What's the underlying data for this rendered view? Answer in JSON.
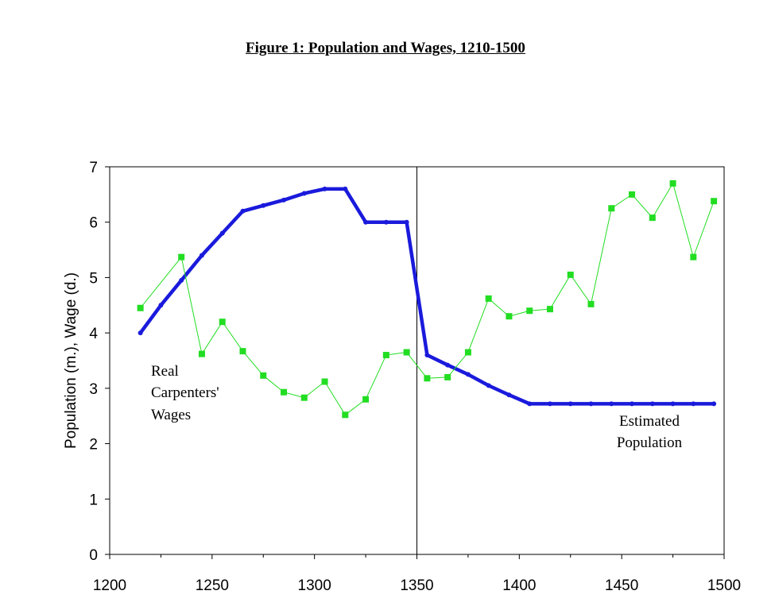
{
  "figure_title": "Figure 1: Population and Wages, 1210-1500",
  "chart_data": {
    "type": "line",
    "title": "Figure 1: Population and Wages, 1210-1500",
    "xlabel": "",
    "ylabel": "Population (m.), Wage (d.)",
    "xlim": [
      1200,
      1500
    ],
    "ylim": [
      0,
      7
    ],
    "x_ticks": [
      1200,
      1250,
      1300,
      1350,
      1400,
      1450,
      1500
    ],
    "y_ticks": [
      0,
      1,
      2,
      3,
      4,
      5,
      6,
      7
    ],
    "vertical_line_x": 1350,
    "series": [
      {
        "name": "Estimated Population",
        "color": "#1a1adc",
        "x": [
          1215,
          1225,
          1235,
          1245,
          1255,
          1265,
          1275,
          1285,
          1295,
          1305,
          1315,
          1325,
          1335,
          1345,
          1355,
          1365,
          1375,
          1385,
          1395,
          1405,
          1415,
          1425,
          1435,
          1445,
          1455,
          1465,
          1475,
          1485,
          1495
        ],
        "values": [
          4.0,
          4.5,
          4.95,
          5.4,
          5.8,
          6.2,
          6.3,
          6.4,
          6.52,
          6.6,
          6.6,
          6.0,
          6.0,
          6.0,
          3.6,
          3.42,
          3.25,
          3.05,
          2.88,
          2.72,
          2.72,
          2.72,
          2.72,
          2.72,
          2.72,
          2.72,
          2.72,
          2.72,
          2.72
        ]
      },
      {
        "name": "Real Carpenters' Wages",
        "color": "#22dd22",
        "x": [
          1215,
          1235,
          1245,
          1255,
          1265,
          1275,
          1285,
          1295,
          1305,
          1315,
          1325,
          1335,
          1345,
          1355,
          1365,
          1375,
          1385,
          1395,
          1405,
          1415,
          1425,
          1435,
          1445,
          1455,
          1465,
          1475,
          1485,
          1495
        ],
        "values": [
          4.45,
          5.37,
          3.62,
          4.2,
          3.67,
          3.23,
          2.93,
          2.83,
          3.12,
          2.52,
          2.8,
          3.6,
          3.65,
          3.18,
          3.2,
          3.65,
          4.62,
          4.3,
          4.4,
          4.43,
          5.05,
          4.52,
          6.25,
          6.5,
          6.08,
          6.7,
          5.37,
          6.38
        ]
      }
    ],
    "annotations": {
      "wages_label": [
        "Real",
        "Carpenters'",
        "Wages"
      ],
      "population_label": [
        "Estimated",
        "Population"
      ]
    }
  }
}
